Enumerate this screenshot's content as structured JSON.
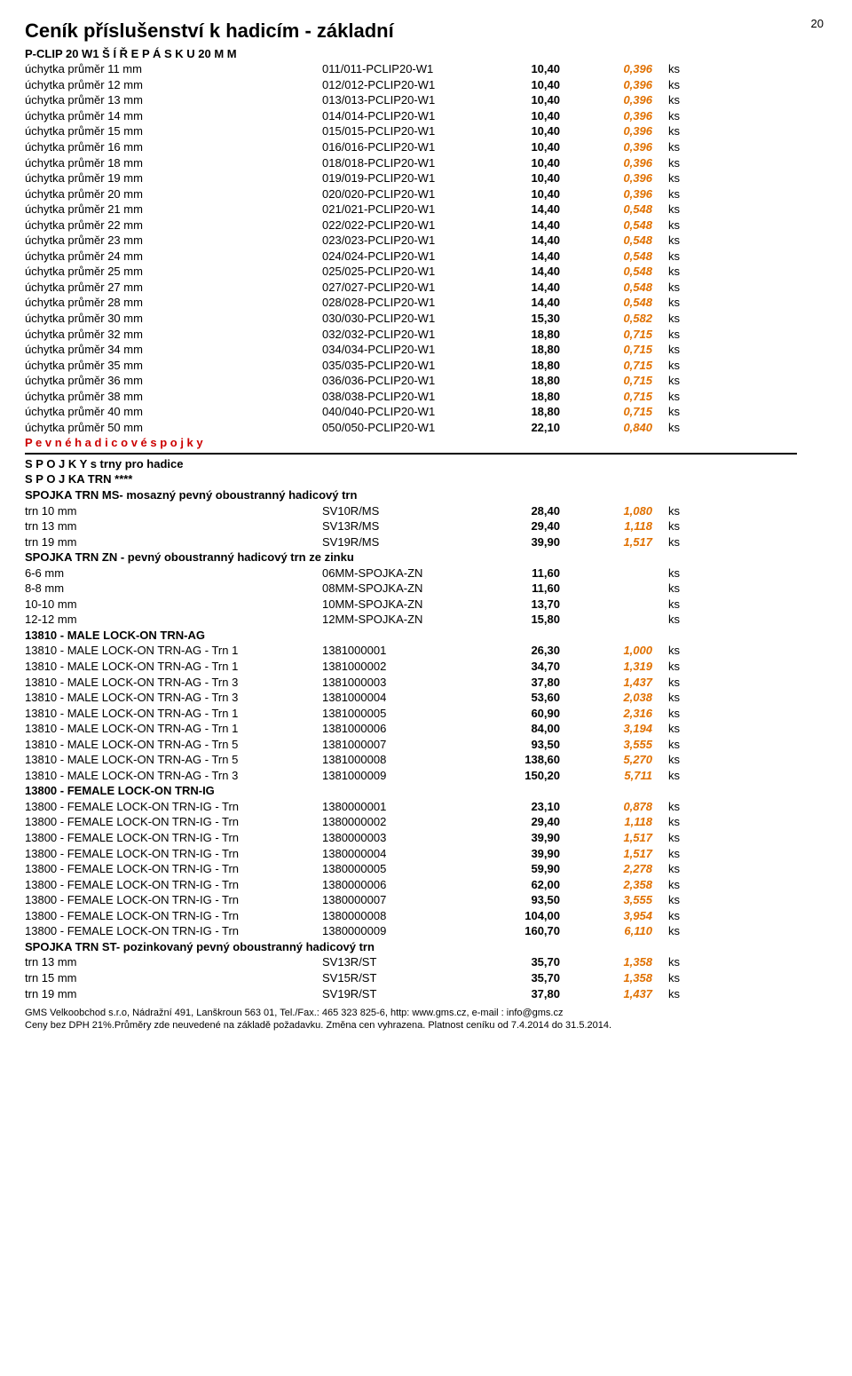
{
  "page_number": "20",
  "title": "Ceník příslušenství k hadicím - základní",
  "pclip": {
    "header": "P-CLIP 20 W1 Š Í Ř E  P Á S K U   20  M M",
    "rows": [
      {
        "desc": "úchytka průměr  11 mm",
        "code": "011/011-PCLIP20-W1",
        "price": "10,40",
        "eur": "0,396",
        "unit": "ks"
      },
      {
        "desc": "úchytka průměr  12 mm",
        "code": "012/012-PCLIP20-W1",
        "price": "10,40",
        "eur": "0,396",
        "unit": "ks"
      },
      {
        "desc": "úchytka průměr  13 mm",
        "code": "013/013-PCLIP20-W1",
        "price": "10,40",
        "eur": "0,396",
        "unit": "ks"
      },
      {
        "desc": "úchytka průměr  14 mm",
        "code": "014/014-PCLIP20-W1",
        "price": "10,40",
        "eur": "0,396",
        "unit": "ks"
      },
      {
        "desc": "úchytka průměr  15 mm",
        "code": "015/015-PCLIP20-W1",
        "price": "10,40",
        "eur": "0,396",
        "unit": "ks"
      },
      {
        "desc": "úchytka průměr  16 mm",
        "code": "016/016-PCLIP20-W1",
        "price": "10,40",
        "eur": "0,396",
        "unit": "ks"
      },
      {
        "desc": "úchytka průměr  18 mm",
        "code": "018/018-PCLIP20-W1",
        "price": "10,40",
        "eur": "0,396",
        "unit": "ks"
      },
      {
        "desc": "úchytka průměr  19 mm",
        "code": "019/019-PCLIP20-W1",
        "price": "10,40",
        "eur": "0,396",
        "unit": "ks"
      },
      {
        "desc": "úchytka průměr  20 mm",
        "code": "020/020-PCLIP20-W1",
        "price": "10,40",
        "eur": "0,396",
        "unit": "ks"
      },
      {
        "desc": "úchytka průměr  21 mm",
        "code": "021/021-PCLIP20-W1",
        "price": "14,40",
        "eur": "0,548",
        "unit": "ks"
      },
      {
        "desc": "úchytka průměr  22 mm",
        "code": "022/022-PCLIP20-W1",
        "price": "14,40",
        "eur": "0,548",
        "unit": "ks"
      },
      {
        "desc": "úchytka průměr  23 mm",
        "code": "023/023-PCLIP20-W1",
        "price": "14,40",
        "eur": "0,548",
        "unit": "ks"
      },
      {
        "desc": "úchytka průměr  24 mm",
        "code": "024/024-PCLIP20-W1",
        "price": "14,40",
        "eur": "0,548",
        "unit": "ks"
      },
      {
        "desc": "úchytka průměr  25 mm",
        "code": "025/025-PCLIP20-W1",
        "price": "14,40",
        "eur": "0,548",
        "unit": "ks"
      },
      {
        "desc": "úchytka průměr  27 mm",
        "code": "027/027-PCLIP20-W1",
        "price": "14,40",
        "eur": "0,548",
        "unit": "ks"
      },
      {
        "desc": "úchytka průměr  28 mm",
        "code": "028/028-PCLIP20-W1",
        "price": "14,40",
        "eur": "0,548",
        "unit": "ks"
      },
      {
        "desc": "úchytka průměr  30 mm",
        "code": "030/030-PCLIP20-W1",
        "price": "15,30",
        "eur": "0,582",
        "unit": "ks"
      },
      {
        "desc": "úchytka průměr  32 mm",
        "code": "032/032-PCLIP20-W1",
        "price": "18,80",
        "eur": "0,715",
        "unit": "ks"
      },
      {
        "desc": "úchytka průměr  34 mm",
        "code": "034/034-PCLIP20-W1",
        "price": "18,80",
        "eur": "0,715",
        "unit": "ks"
      },
      {
        "desc": "úchytka průměr  35 mm",
        "code": "035/035-PCLIP20-W1",
        "price": "18,80",
        "eur": "0,715",
        "unit": "ks"
      },
      {
        "desc": "úchytka průměr  36 mm",
        "code": "036/036-PCLIP20-W1",
        "price": "18,80",
        "eur": "0,715",
        "unit": "ks"
      },
      {
        "desc": "úchytka průměr  38 mm",
        "code": "038/038-PCLIP20-W1",
        "price": "18,80",
        "eur": "0,715",
        "unit": "ks"
      },
      {
        "desc": "úchytka průměr  40 mm",
        "code": "040/040-PCLIP20-W1",
        "price": "18,80",
        "eur": "0,715",
        "unit": "ks"
      },
      {
        "desc": "úchytka průměr  50 mm",
        "code": "050/050-PCLIP20-W1",
        "price": "22,10",
        "eur": "0,840",
        "unit": "ks"
      }
    ]
  },
  "pevne_header": "P e v n é   h a d i c o v é   s p o j k y",
  "spojky_header1": "S P O J K Y  s trny pro hadice",
  "spojky_header2": "S P O J KA TRN ****",
  "ms": {
    "header": "SPOJKA TRN MS- mosazný pevný oboustranný hadicový trn",
    "rows": [
      {
        "desc": "trn 10 mm",
        "code": "SV10R/MS",
        "price": "28,40",
        "eur": "1,080",
        "unit": "ks"
      },
      {
        "desc": "trn 13 mm",
        "code": "SV13R/MS",
        "price": "29,40",
        "eur": "1,118",
        "unit": "ks"
      },
      {
        "desc": "trn 19 mm",
        "code": "SV19R/MS",
        "price": "39,90",
        "eur": "1,517",
        "unit": "ks"
      }
    ]
  },
  "zn": {
    "header": "SPOJKA TRN ZN - pevný oboustranný hadicový trn ze zinku",
    "rows": [
      {
        "desc": "6-6 mm",
        "code": "06MM-SPOJKA-ZN",
        "price": "11,60",
        "eur": "",
        "unit": "ks"
      },
      {
        "desc": "8-8 mm",
        "code": "08MM-SPOJKA-ZN",
        "price": "11,60",
        "eur": "",
        "unit": "ks"
      },
      {
        "desc": "10-10 mm",
        "code": "10MM-SPOJKA-ZN",
        "price": "13,70",
        "eur": "",
        "unit": "ks"
      },
      {
        "desc": "12-12 mm",
        "code": "12MM-SPOJKA-ZN",
        "price": "15,80",
        "eur": "",
        "unit": "ks"
      }
    ]
  },
  "male": {
    "header": "13810 - MALE LOCK-ON TRN-AG",
    "rows": [
      {
        "desc": "13810 - MALE LOCK-ON TRN-AG  - Trn 1",
        "code": "1381000001",
        "price": "26,30",
        "eur": "1,000",
        "unit": "ks"
      },
      {
        "desc": "13810 - MALE LOCK-ON TRN-AG  - Trn 1",
        "code": "1381000002",
        "price": "34,70",
        "eur": "1,319",
        "unit": "ks"
      },
      {
        "desc": "13810 - MALE LOCK-ON TRN-AG  - Trn 3",
        "code": "1381000003",
        "price": "37,80",
        "eur": "1,437",
        "unit": "ks"
      },
      {
        "desc": "13810 - MALE LOCK-ON TRN-AG  - Trn 3",
        "code": "1381000004",
        "price": "53,60",
        "eur": "2,038",
        "unit": "ks"
      },
      {
        "desc": "13810 - MALE LOCK-ON TRN-AG  - Trn 1",
        "code": "1381000005",
        "price": "60,90",
        "eur": "2,316",
        "unit": "ks"
      },
      {
        "desc": "13810 - MALE LOCK-ON TRN-AG  - Trn 1",
        "code": "1381000006",
        "price": "84,00",
        "eur": "3,194",
        "unit": "ks"
      },
      {
        "desc": "13810 - MALE LOCK-ON TRN-AG  - Trn 5",
        "code": "1381000007",
        "price": "93,50",
        "eur": "3,555",
        "unit": "ks"
      },
      {
        "desc": "13810 - MALE LOCK-ON TRN-AG  - Trn 5",
        "code": "1381000008",
        "price": "138,60",
        "eur": "5,270",
        "unit": "ks"
      },
      {
        "desc": "13810 - MALE LOCK-ON TRN-AG  - Trn 3",
        "code": "1381000009",
        "price": "150,20",
        "eur": "5,711",
        "unit": "ks"
      }
    ]
  },
  "female": {
    "header": "13800 - FEMALE LOCK-ON TRN-IG",
    "rows": [
      {
        "desc": "13800 - FEMALE LOCK-ON TRN-IG  - Trn",
        "code": "1380000001",
        "price": "23,10",
        "eur": "0,878",
        "unit": "ks"
      },
      {
        "desc": "13800 - FEMALE LOCK-ON TRN-IG  - Trn",
        "code": "1380000002",
        "price": "29,40",
        "eur": "1,118",
        "unit": "ks"
      },
      {
        "desc": "13800 - FEMALE LOCK-ON TRN-IG  - Trn",
        "code": "1380000003",
        "price": "39,90",
        "eur": "1,517",
        "unit": "ks"
      },
      {
        "desc": "13800 - FEMALE LOCK-ON TRN-IG  - Trn",
        "code": "1380000004",
        "price": "39,90",
        "eur": "1,517",
        "unit": "ks"
      },
      {
        "desc": "13800 - FEMALE LOCK-ON TRN-IG  - Trn",
        "code": "1380000005",
        "price": "59,90",
        "eur": "2,278",
        "unit": "ks"
      },
      {
        "desc": "13800 - FEMALE LOCK-ON TRN-IG  - Trn",
        "code": "1380000006",
        "price": "62,00",
        "eur": "2,358",
        "unit": "ks"
      },
      {
        "desc": "13800 - FEMALE LOCK-ON TRN-IG  - Trn",
        "code": "1380000007",
        "price": "93,50",
        "eur": "3,555",
        "unit": "ks"
      },
      {
        "desc": "13800 - FEMALE LOCK-ON TRN-IG  - Trn",
        "code": "1380000008",
        "price": "104,00",
        "eur": "3,954",
        "unit": "ks"
      },
      {
        "desc": "13800 - FEMALE LOCK-ON TRN-IG  - Trn",
        "code": "1380000009",
        "price": "160,70",
        "eur": "6,110",
        "unit": "ks"
      }
    ]
  },
  "st": {
    "header": "SPOJKA TRN ST- pozinkovaný pevný oboustranný hadicový trn",
    "rows": [
      {
        "desc": "trn 13 mm",
        "code": "SV13R/ST",
        "price": "35,70",
        "eur": "1,358",
        "unit": "ks"
      },
      {
        "desc": "trn 15 mm",
        "code": "SV15R/ST",
        "price": "35,70",
        "eur": "1,358",
        "unit": "ks"
      },
      {
        "desc": "trn 19 mm",
        "code": "SV19R/ST",
        "price": "37,80",
        "eur": "1,437",
        "unit": "ks"
      }
    ]
  },
  "footer": {
    "line1": "GMS Velkoobchod s.r.o, Nádražní 491, Lanškroun 563 01, Tel./Fax.: 465 323 825-6, http: www.gms.cz, e-mail : info@gms.cz",
    "line2": "Ceny bez DPH 21%.Průměry zde neuvedené na základě požadavku. Změna cen vyhrazena. Platnost ceníku od 7.4.2014 do  31.5.2014."
  }
}
